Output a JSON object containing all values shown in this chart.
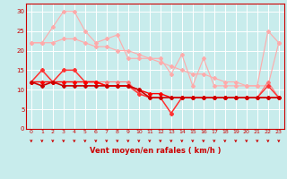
{
  "title": "",
  "xlabel": "Vent moyen/en rafales ( km/h )",
  "background_color": "#c8ecec",
  "grid_color": "#ffffff",
  "x_ticks": [
    0,
    1,
    2,
    3,
    4,
    5,
    6,
    7,
    8,
    9,
    10,
    11,
    12,
    13,
    14,
    15,
    16,
    17,
    18,
    19,
    20,
    21,
    22,
    23
  ],
  "ylim": [
    0,
    32
  ],
  "xlim": [
    -0.5,
    23.5
  ],
  "yticks": [
    0,
    5,
    10,
    15,
    20,
    25,
    30
  ],
  "series": [
    {
      "color": "#ffaaaa",
      "linewidth": 0.8,
      "marker": "D",
      "markersize": 2.0,
      "x": [
        0,
        1,
        2,
        3,
        4,
        5,
        6,
        7,
        8,
        9,
        10,
        11,
        12,
        13,
        14,
        15,
        16,
        17,
        18,
        19,
        20,
        21,
        22,
        23
      ],
      "y": [
        22,
        22,
        26,
        30,
        30,
        25,
        22,
        23,
        24,
        18,
        18,
        18,
        18,
        14,
        19,
        11,
        18,
        11,
        11,
        11,
        11,
        11,
        25,
        22
      ]
    },
    {
      "color": "#ffaaaa",
      "linewidth": 0.8,
      "marker": "D",
      "markersize": 2.0,
      "x": [
        0,
        1,
        2,
        3,
        4,
        5,
        6,
        7,
        8,
        9,
        10,
        11,
        12,
        13,
        14,
        15,
        16,
        17,
        18,
        19,
        20,
        21,
        22,
        23
      ],
      "y": [
        22,
        22,
        22,
        23,
        23,
        22,
        21,
        21,
        20,
        20,
        19,
        18,
        17,
        16,
        15,
        14,
        14,
        13,
        12,
        12,
        11,
        11,
        11,
        22
      ]
    },
    {
      "color": "#ff7777",
      "linewidth": 0.8,
      "marker": "D",
      "markersize": 2.0,
      "x": [
        0,
        1,
        2,
        3,
        4,
        5,
        6,
        7,
        8,
        9,
        10,
        11,
        12,
        13,
        14,
        15,
        16,
        17,
        18,
        19,
        20,
        21,
        22,
        23
      ],
      "y": [
        12,
        15,
        12,
        15,
        15,
        12,
        12,
        12,
        12,
        12,
        9,
        8,
        8,
        4,
        8,
        8,
        8,
        8,
        8,
        8,
        8,
        8,
        12,
        8
      ]
    },
    {
      "color": "#ff3333",
      "linewidth": 1.0,
      "marker": "D",
      "markersize": 2.0,
      "x": [
        0,
        1,
        2,
        3,
        4,
        5,
        6,
        7,
        8,
        9,
        10,
        11,
        12,
        13,
        14,
        15,
        16,
        17,
        18,
        19,
        20,
        21,
        22,
        23
      ],
      "y": [
        12,
        15,
        12,
        15,
        15,
        12,
        12,
        11,
        11,
        11,
        9,
        8,
        8,
        4,
        8,
        8,
        8,
        8,
        8,
        8,
        8,
        8,
        11,
        8
      ]
    },
    {
      "color": "#ff0000",
      "linewidth": 1.0,
      "marker": "D",
      "markersize": 2.0,
      "x": [
        0,
        1,
        2,
        3,
        4,
        5,
        6,
        7,
        8,
        9,
        10,
        11,
        12,
        13,
        14,
        15,
        16,
        17,
        18,
        19,
        20,
        21,
        22,
        23
      ],
      "y": [
        12,
        12,
        12,
        12,
        12,
        12,
        12,
        11,
        11,
        11,
        10,
        9,
        9,
        8,
        8,
        8,
        8,
        8,
        8,
        8,
        8,
        8,
        8,
        8
      ]
    },
    {
      "color": "#cc0000",
      "linewidth": 1.2,
      "marker": "D",
      "markersize": 2.0,
      "x": [
        0,
        1,
        2,
        3,
        4,
        5,
        6,
        7,
        8,
        9,
        10,
        11,
        12,
        13,
        14,
        15,
        16,
        17,
        18,
        19,
        20,
        21,
        22,
        23
      ],
      "y": [
        12,
        11,
        12,
        11,
        11,
        11,
        11,
        11,
        11,
        11,
        10,
        8,
        8,
        8,
        8,
        8,
        8,
        8,
        8,
        8,
        8,
        8,
        8,
        8
      ]
    }
  ],
  "arrow_color": "#cc0000",
  "xlabel_color": "#cc0000",
  "tick_color": "#cc0000",
  "spine_color": "#cc0000"
}
